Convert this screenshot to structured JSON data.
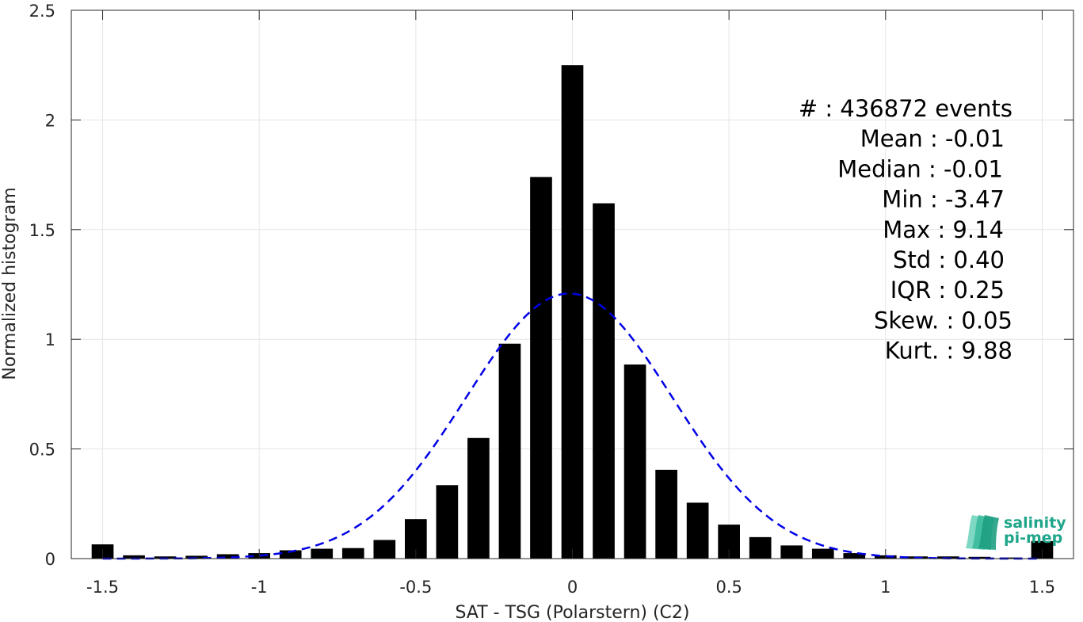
{
  "chart_data": {
    "type": "bar",
    "xlabel": "SAT - TSG (Polarstern) (C2)",
    "ylabel": "Normalized histogram",
    "xlim": [
      -1.6,
      1.6
    ],
    "ylim": [
      0,
      2.5
    ],
    "xticks": [
      -1.5,
      -1,
      -0.5,
      0,
      0.5,
      1,
      1.5
    ],
    "xtick_labels": [
      "-1.5",
      "-1",
      "-0.5",
      "0",
      "0.5",
      "1",
      "1.5"
    ],
    "yticks": [
      0,
      0.5,
      1,
      1.5,
      2,
      2.5
    ],
    "ytick_labels": [
      "0",
      "0.5",
      "1",
      "1.5",
      "2",
      "2.5"
    ],
    "grid": true,
    "bar_width": 0.07,
    "bar_color": "#000000",
    "x": [
      -1.5,
      -1.4,
      -1.3,
      -1.2,
      -1.1,
      -1.0,
      -0.9,
      -0.8,
      -0.7,
      -0.6,
      -0.5,
      -0.4,
      -0.3,
      -0.2,
      -0.1,
      0.0,
      0.1,
      0.2,
      0.3,
      0.4,
      0.5,
      0.6,
      0.7,
      0.8,
      0.9,
      1.0,
      1.1,
      1.2,
      1.3,
      1.4,
      1.5
    ],
    "values": [
      0.065,
      0.015,
      0.01,
      0.013,
      0.02,
      0.025,
      0.038,
      0.045,
      0.048,
      0.085,
      0.18,
      0.335,
      0.55,
      0.98,
      1.74,
      2.25,
      1.62,
      0.885,
      0.405,
      0.255,
      0.155,
      0.098,
      0.06,
      0.045,
      0.025,
      0.015,
      0.01,
      0.01,
      0.008,
      0.005,
      0.08
    ],
    "fit_curve": {
      "type": "gaussian",
      "mean": -0.01,
      "std": 0.33,
      "color": "#0000e6",
      "style": "dashed",
      "x_range": [
        -1.5,
        1.5
      ]
    },
    "annotations": [
      "#  : 436872 events",
      "Mean : -0.01",
      "Median : -0.01",
      "Min : -3.47",
      "Max : 9.14",
      "Std : 0.40",
      "IQR : 0.25",
      "Skew. : 0.05",
      "Kurt. : 9.88"
    ]
  },
  "logo": {
    "line1": "salinity",
    "line2": "pi-mep",
    "color": "#1fa58a"
  }
}
